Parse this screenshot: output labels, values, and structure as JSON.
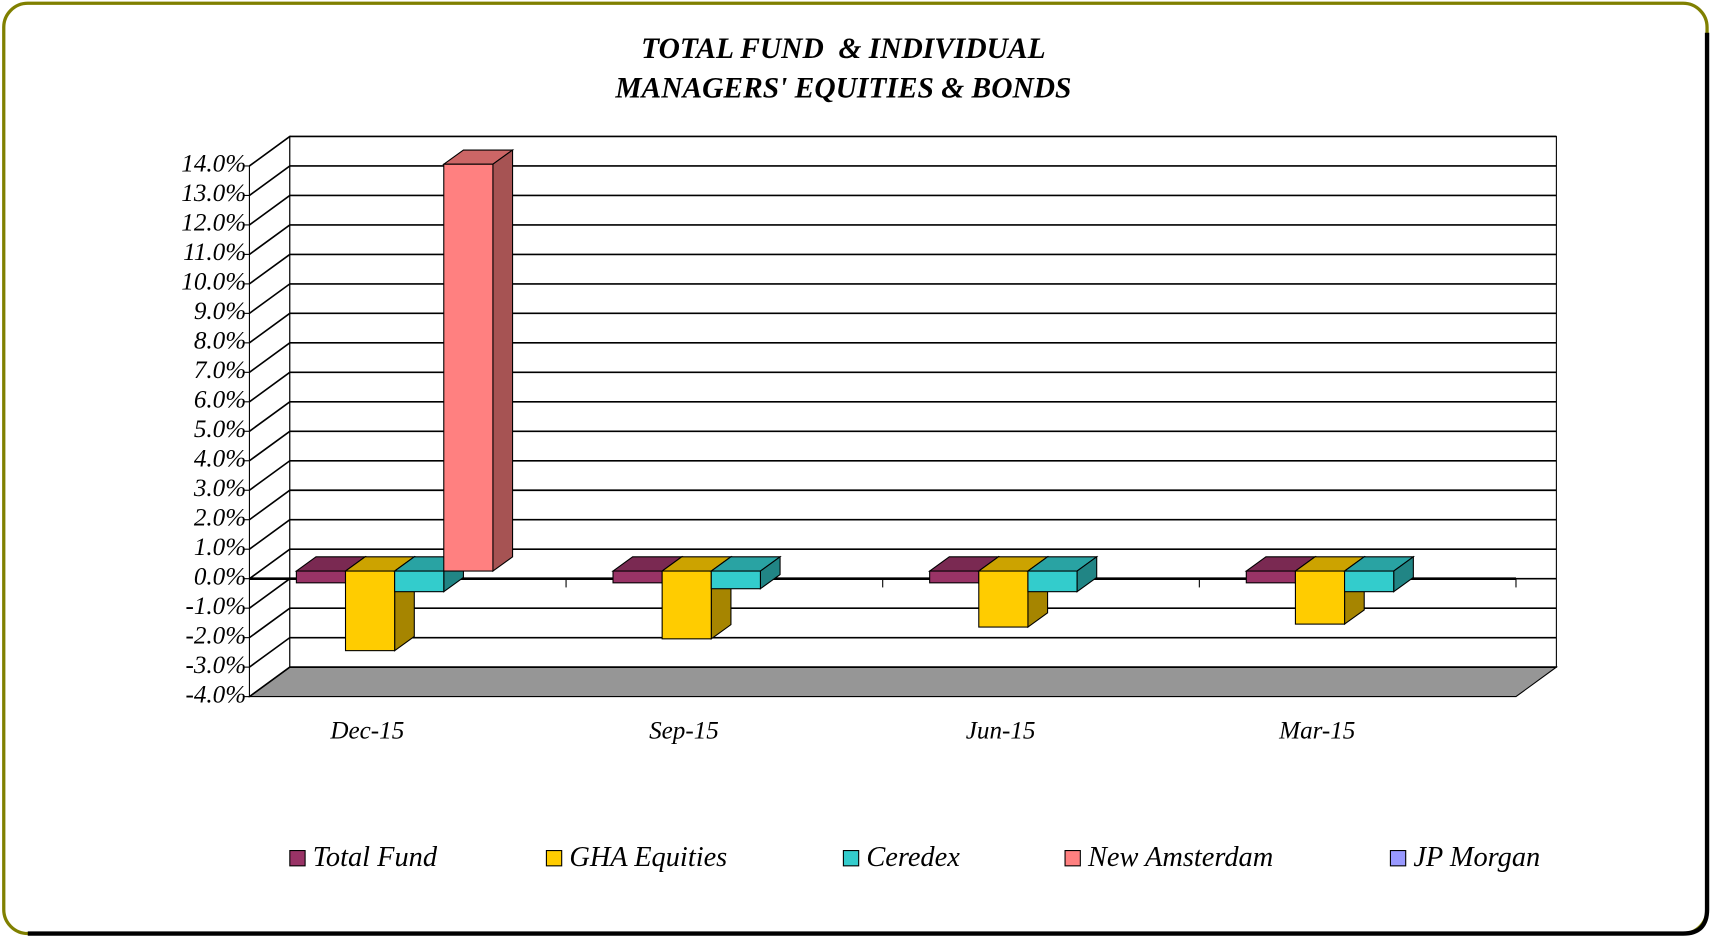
{
  "chart_data": {
    "type": "bar3d",
    "title": [
      "TOTAL FUND  & INDIVIDUAL",
      "MANAGERS' EQUITIES & BONDS"
    ],
    "categories": [
      "Dec-15",
      "Sep-15",
      "Jun-15",
      "Mar-15"
    ],
    "series": [
      {
        "name": "Total Fund",
        "color": "#993366",
        "values": [
          -0.4,
          -0.4,
          -0.4,
          -0.4
        ]
      },
      {
        "name": "GHA Equities",
        "color": "#ffcc00",
        "values": [
          -2.7,
          -2.3,
          -1.9,
          -1.8
        ]
      },
      {
        "name": "Ceredex",
        "color": "#33cccc",
        "values": [
          -0.7,
          -0.6,
          -0.7,
          -0.7
        ]
      },
      {
        "name": "New Amsterdam",
        "color": "#ff8080",
        "values": [
          13.8,
          null,
          null,
          null
        ]
      },
      {
        "name": "JP Morgan",
        "color": "#9999ff",
        "values": [
          null,
          null,
          null,
          null
        ]
      }
    ],
    "ylim": [
      -4,
      14
    ],
    "yticks": [
      {
        "value": -4,
        "label": "-4.0%"
      },
      {
        "value": -3,
        "label": "-3.0%"
      },
      {
        "value": -2,
        "label": "-2.0%"
      },
      {
        "value": -1,
        "label": "-1.0%"
      },
      {
        "value": 0,
        "label": "0.0%"
      },
      {
        "value": 1,
        "label": "1.0%"
      },
      {
        "value": 2,
        "label": "2.0%"
      },
      {
        "value": 3,
        "label": "3.0%"
      },
      {
        "value": 4,
        "label": "4.0%"
      },
      {
        "value": 5,
        "label": "5.0%"
      },
      {
        "value": 6,
        "label": "6.0%"
      },
      {
        "value": 7,
        "label": "7.0%"
      },
      {
        "value": 8,
        "label": "8.0%"
      },
      {
        "value": 9,
        "label": "9.0%"
      },
      {
        "value": 10,
        "label": "10.0%"
      },
      {
        "value": 11,
        "label": "11.0%"
      },
      {
        "value": 12,
        "label": "12.0%"
      },
      {
        "value": 13,
        "label": "13.0%"
      },
      {
        "value": 14,
        "label": "14.0%"
      }
    ],
    "grid": true,
    "legend": "bottom"
  }
}
